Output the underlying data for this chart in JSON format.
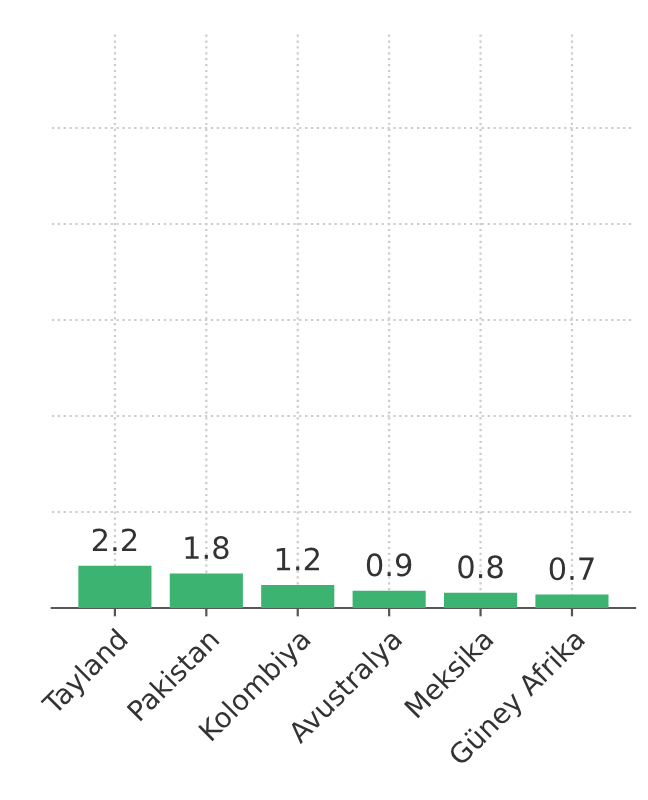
{
  "chart_data": {
    "type": "bar",
    "categories": [
      "Tayland",
      "Pakistan",
      "Kolombiya",
      "Avustralya",
      "Meksika",
      "Güney Afrika"
    ],
    "values": [
      2.2,
      1.8,
      1.2,
      0.9,
      0.8,
      0.7
    ],
    "color": "#3cb371",
    "data_labels": true,
    "ylim": [
      0,
      30
    ],
    "yticks": [
      {
        "value": 0,
        "label": null
      },
      {
        "value": 5,
        "label": null
      },
      {
        "value": 10,
        "label": null
      },
      {
        "value": 15,
        "label": null
      },
      {
        "value": 20,
        "label": null
      },
      {
        "value": 25,
        "label": null
      }
    ],
    "tick_labels": "x",
    "grid": true
  }
}
